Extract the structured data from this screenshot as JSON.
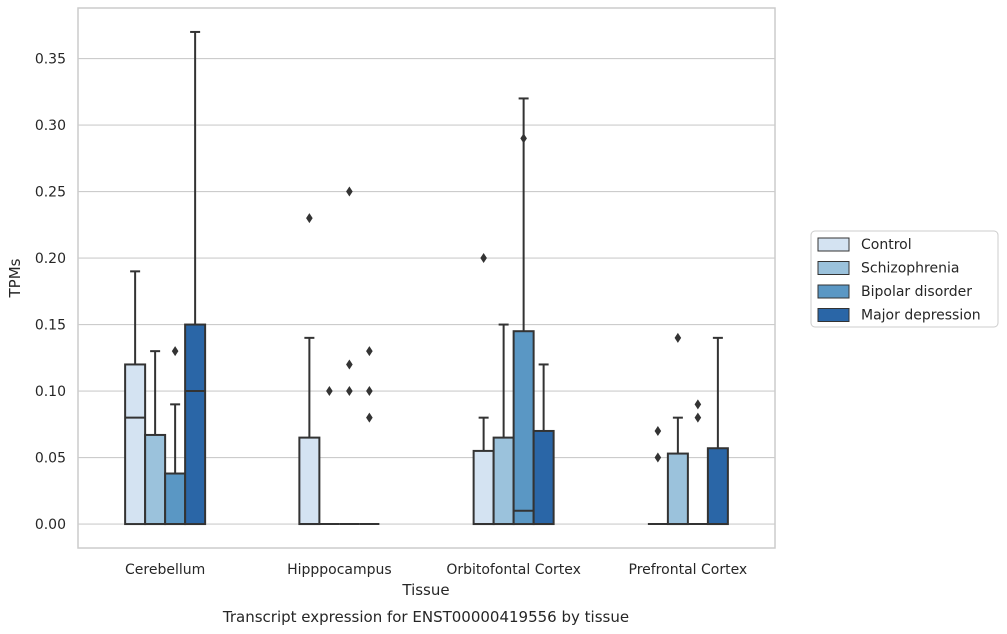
{
  "chart_data": {
    "type": "box",
    "title": "",
    "caption": "Transcript expression for ENST00000419556 by tissue",
    "xlabel": "Tissue",
    "ylabel": "TPMs",
    "ylim": [
      -0.018,
      0.388
    ],
    "yticks": [
      "0.00",
      "0.05",
      "0.10",
      "0.15",
      "0.20",
      "0.25",
      "0.30",
      "0.35"
    ],
    "ytick_values": [
      0,
      0.05,
      0.1,
      0.15,
      0.2,
      0.25,
      0.3,
      0.35
    ],
    "grid": "horizontal",
    "legend_position": "right",
    "categories": [
      "Cerebellum",
      "Hipppocampus",
      "Orbitofontal Cortex",
      "Prefrontal Cortex"
    ],
    "series": [
      {
        "name": "Control",
        "color": "#d4e3f2",
        "boxes": [
          {
            "q1": 0,
            "median": 0.08,
            "q3": 0.12,
            "whisker_low": 0,
            "whisker_high": 0.19,
            "outliers": []
          },
          {
            "q1": 0,
            "median": 0,
            "q3": 0.065,
            "whisker_low": 0,
            "whisker_high": 0.14,
            "outliers": [
              0.23
            ]
          },
          {
            "q1": 0,
            "median": 0,
            "q3": 0.055,
            "whisker_low": 0,
            "whisker_high": 0.08,
            "outliers": [
              0.2
            ]
          },
          {
            "q1": 0,
            "median": 0,
            "q3": 0,
            "whisker_low": 0,
            "whisker_high": 0,
            "outliers": [
              0.07,
              0.05
            ]
          }
        ]
      },
      {
        "name": "Schizophrenia",
        "color": "#9bc2dc",
        "boxes": [
          {
            "q1": 0,
            "median": 0,
            "q3": 0.067,
            "whisker_low": 0,
            "whisker_high": 0.13,
            "outliers": []
          },
          {
            "q1": 0,
            "median": 0,
            "q3": 0,
            "whisker_low": 0,
            "whisker_high": 0,
            "outliers": [
              0.1
            ]
          },
          {
            "q1": 0,
            "median": 0,
            "q3": 0.065,
            "whisker_low": 0,
            "whisker_high": 0.15,
            "outliers": []
          },
          {
            "q1": 0,
            "median": 0,
            "q3": 0.053,
            "whisker_low": 0,
            "whisker_high": 0.08,
            "outliers": [
              0.14
            ]
          }
        ]
      },
      {
        "name": "Bipolar disorder",
        "color": "#5a97c4",
        "boxes": [
          {
            "q1": 0,
            "median": 0,
            "q3": 0.038,
            "whisker_low": 0,
            "whisker_high": 0.09,
            "outliers": [
              0.13
            ]
          },
          {
            "q1": 0,
            "median": 0,
            "q3": 0,
            "whisker_low": 0,
            "whisker_high": 0,
            "outliers": [
              0.25,
              0.12,
              0.1
            ]
          },
          {
            "q1": 0,
            "median": 0.01,
            "q3": 0.145,
            "whisker_low": 0,
            "whisker_high": 0.32,
            "outliers": [
              0.29
            ]
          },
          {
            "q1": 0,
            "median": 0,
            "q3": 0,
            "whisker_low": 0,
            "whisker_high": 0,
            "outliers": [
              0.09,
              0.08
            ]
          }
        ]
      },
      {
        "name": "Major depression",
        "color": "#2a66a7",
        "boxes": [
          {
            "q1": 0,
            "median": 0.1,
            "q3": 0.15,
            "whisker_low": 0,
            "whisker_high": 0.37,
            "outliers": []
          },
          {
            "q1": 0,
            "median": 0,
            "q3": 0,
            "whisker_low": 0,
            "whisker_high": 0,
            "outliers": [
              0.13,
              0.1,
              0.08
            ]
          },
          {
            "q1": 0,
            "median": 0,
            "q3": 0.07,
            "whisker_low": 0,
            "whisker_high": 0.12,
            "outliers": []
          },
          {
            "q1": 0,
            "median": 0,
            "q3": 0.057,
            "whisker_low": 0,
            "whisker_high": 0.14,
            "outliers": []
          }
        ]
      }
    ]
  }
}
